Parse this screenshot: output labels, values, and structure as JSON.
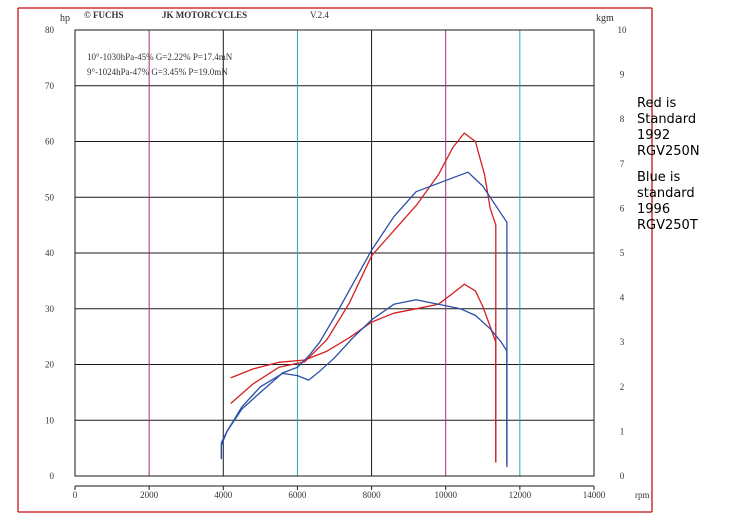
{
  "header": {
    "brand": "© FUCHS",
    "shop": "JK MOTORCYCLES",
    "version": "V.2.4"
  },
  "notes": {
    "red": "Red is\nStandard\n1992\nRGV250N",
    "blue": "Blue is\nstandard\n1996\nRGV250T"
  },
  "colors": {
    "red_series": "#d42020",
    "blue_series": "#2a4fa8",
    "grid_dark": "#1a1a1a",
    "grid_cyan": "#2aa6a6",
    "grid_magenta": "#a0307a",
    "border": "#cc3333"
  },
  "chart_data": {
    "type": "line",
    "title": "",
    "xlabel": "rpm",
    "ylabel": "hp",
    "y2label": "kgm",
    "xlim": [
      0,
      14000
    ],
    "ylim": [
      0,
      80
    ],
    "y2lim": [
      0,
      10
    ],
    "x_ticks": [
      "0",
      "2000",
      "4000",
      "6000",
      "8000",
      "10000",
      "12000",
      "14000"
    ],
    "y_ticks": [
      "0",
      "10",
      "20",
      "30",
      "40",
      "50",
      "60",
      "70",
      "80"
    ],
    "y2_ticks": [
      "0",
      "1",
      "2",
      "3",
      "4",
      "5",
      "6",
      "7",
      "8",
      "9",
      "10"
    ],
    "grid": true,
    "legend": [
      {
        "label": "10°-1030hPa-45% G=2.22% P=17.4mN",
        "color": "#d42020"
      },
      {
        "label": "9°-1024hPa-47% G=3.45% P=19.0mN",
        "color": "#2a4fa8"
      }
    ],
    "series": [
      {
        "color": "#d42020",
        "kind": "power",
        "x": [
          4200,
          4800,
          5500,
          6200,
          6800,
          7400,
          8000,
          8600,
          9200,
          9800,
          10200,
          10500,
          10800,
          11050,
          11200,
          11350,
          11350
        ],
        "y": [
          13.0,
          16.5,
          19.5,
          20.5,
          24.5,
          31.0,
          39.5,
          44.0,
          48.5,
          54.0,
          59.0,
          61.5,
          60.0,
          54.0,
          48.0,
          45.0,
          2.5
        ]
      },
      {
        "color": "#d42020",
        "kind": "torque",
        "x": [
          4200,
          4800,
          5500,
          6200,
          6800,
          7400,
          8000,
          8600,
          9200,
          9800,
          10200,
          10500,
          10800,
          11000,
          11200,
          11350,
          11350
        ],
        "y": [
          2.2,
          2.4,
          2.55,
          2.6,
          2.8,
          3.1,
          3.45,
          3.65,
          3.75,
          3.85,
          4.1,
          4.3,
          4.15,
          3.8,
          3.35,
          3.0,
          0.3
        ]
      },
      {
        "color": "#2a4fa8",
        "kind": "power",
        "x": [
          3950,
          3950,
          4100,
          4500,
          5000,
          5600,
          6000,
          6300,
          6600,
          7000,
          7500,
          8000,
          8600,
          9200,
          9800,
          10200,
          10600,
          11000,
          11300,
          11650,
          11650
        ],
        "y": [
          3.0,
          5.5,
          8.0,
          12.0,
          15.0,
          18.5,
          19.5,
          21.5,
          24.0,
          28.5,
          34.5,
          40.5,
          46.5,
          51.0,
          52.5,
          53.5,
          54.5,
          52.0,
          49.0,
          45.5,
          2.0
        ]
      },
      {
        "color": "#2a4fa8",
        "kind": "torque",
        "x": [
          3950,
          3950,
          4100,
          4500,
          5000,
          5600,
          6000,
          6300,
          6600,
          7000,
          7500,
          8000,
          8600,
          9200,
          9800,
          10400,
          10800,
          11200,
          11500,
          11650,
          11650
        ],
        "y": [
          0.4,
          0.75,
          1.0,
          1.55,
          2.0,
          2.3,
          2.25,
          2.15,
          2.35,
          2.65,
          3.1,
          3.5,
          3.85,
          3.95,
          3.85,
          3.75,
          3.6,
          3.3,
          3.0,
          2.8,
          0.2
        ]
      }
    ]
  }
}
